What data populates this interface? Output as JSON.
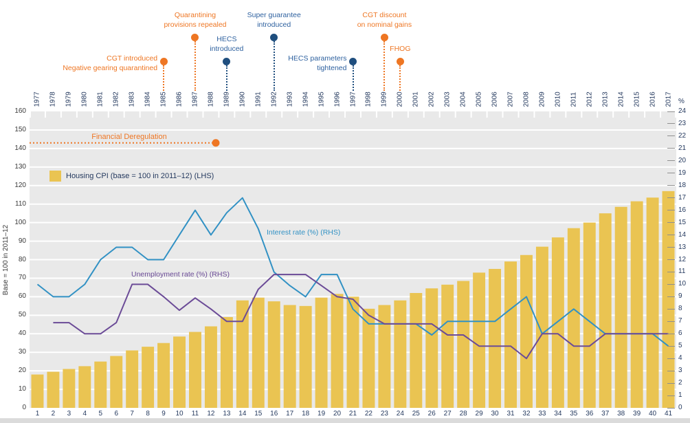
{
  "colors": {
    "bar": "#EAC452",
    "interest_line": "#3191C4",
    "unemployment_line": "#6B4B97",
    "orange": "#EE7623",
    "navy_dot": "#1F4E7E",
    "navy_text": "#2E619F",
    "axis_navy": "#24395E",
    "left_axis_text": "#3A3A3A",
    "plot_bg": "#E9E9E9",
    "gridline": "#FFFFFF"
  },
  "axes": {
    "left_title": "Base = 100 in 2011–12",
    "right_title": "%",
    "left_ticks": [
      0,
      10,
      20,
      30,
      40,
      50,
      60,
      70,
      80,
      90,
      100,
      110,
      120,
      130,
      140,
      150,
      160
    ],
    "right_ticks": [
      0,
      1,
      2,
      3,
      4,
      5,
      6,
      7,
      8,
      9,
      10,
      11,
      12,
      13,
      14,
      15,
      16,
      17,
      18,
      19,
      20,
      21,
      22,
      23,
      24
    ],
    "bottom_ticks": [
      "1",
      "2",
      "3",
      "4",
      "5",
      "6",
      "7",
      "8",
      "9",
      "10",
      "11",
      "12",
      "13",
      "14",
      "15",
      "16",
      "17",
      "18",
      "19",
      "20",
      "21",
      "22",
      "23",
      "24",
      "25",
      "26",
      "27",
      "28",
      "29",
      "30",
      "31",
      "32",
      "33",
      "34",
      "35",
      "36",
      "37",
      "38",
      "39",
      "40",
      "41"
    ]
  },
  "legend": {
    "label": "Housing CPI (base = 100 in 2011–12) (LHS)"
  },
  "line_labels": {
    "interest": "Interest rate (%) (RHS)",
    "unemployment": "Unemployment rate (%) (RHS)"
  },
  "annotations": {
    "financial_deregulation": {
      "label": "Financial Deregulation",
      "lhs_value": 143,
      "style": "dotted orange line from left edge ending with dot between 1988 and 1989"
    }
  },
  "timeline": {
    "events": [
      {
        "year": "1985",
        "level": "low",
        "color": "orange",
        "align": "left-of-dot",
        "lines": [
          "CGT introduced",
          "Negative gearing quarantined"
        ]
      },
      {
        "year": "1987",
        "level": "high",
        "color": "orange",
        "align": "above",
        "lines": [
          "Quarantining",
          "provisions repealed"
        ]
      },
      {
        "year": "1989",
        "level": "low",
        "color": "blue",
        "align": "above",
        "lines": [
          "HECS",
          "introduced"
        ]
      },
      {
        "year": "1992",
        "level": "high",
        "color": "blue",
        "align": "above",
        "lines": [
          "Super guarantee",
          "introduced"
        ]
      },
      {
        "year": "1997",
        "level": "low",
        "color": "blue",
        "align": "left-of-dot",
        "lines": [
          "HECS parameters",
          "tightened"
        ]
      },
      {
        "year": "1999",
        "level": "high",
        "color": "orange",
        "align": "above",
        "lines": [
          "CGT discount",
          "on nominal gains"
        ]
      },
      {
        "year": "2000",
        "level": "low",
        "color": "orange",
        "align": "above",
        "lines": [
          "FHOG"
        ]
      }
    ]
  },
  "chart_data": {
    "type": "combo",
    "categories": [
      "1977",
      "1978",
      "1979",
      "1980",
      "1981",
      "1982",
      "1983",
      "1984",
      "1985",
      "1986",
      "1987",
      "1988",
      "1989",
      "1990",
      "1991",
      "1992",
      "1993",
      "1994",
      "1995",
      "1996",
      "1997",
      "1998",
      "1999",
      "2000",
      "2001",
      "2002",
      "2003",
      "2004",
      "2005",
      "2006",
      "2007",
      "2008",
      "2009",
      "2010",
      "2011",
      "2012",
      "2013",
      "2014",
      "2015",
      "2016",
      "2017"
    ],
    "lhs_range": [
      0,
      160
    ],
    "rhs_range": [
      0,
      24
    ],
    "gridlines": "horizontal white lines every 10 LHS units on grey background",
    "legend_position": "upper-left inside plot",
    "series": [
      {
        "name": "Housing CPI (base = 100 in 2011–12)",
        "type": "bar",
        "axis": "LHS",
        "color": "#EAC452",
        "values": [
          18,
          19.5,
          21,
          22.5,
          25,
          28,
          31,
          33,
          35,
          38.5,
          41,
          44,
          49,
          58,
          59.5,
          57.5,
          55.5,
          55,
          59.5,
          61.5,
          60,
          53.5,
          55.5,
          58,
          62,
          64.5,
          66.5,
          68.5,
          73,
          75,
          79,
          82.5,
          87,
          92,
          97,
          100,
          105,
          108.5,
          111.5,
          113.5,
          117
        ]
      },
      {
        "name": "Interest rate (%)",
        "type": "line",
        "axis": "RHS",
        "color": "#3191C4",
        "values": [
          10,
          9,
          9,
          10,
          12,
          13,
          13,
          12,
          12,
          14,
          16,
          14,
          15.8,
          17,
          14.5,
          11,
          9.9,
          9,
          10.8,
          10.8,
          8,
          6.8,
          6.8,
          6.8,
          6.8,
          5.9,
          7,
          7,
          7,
          7,
          8,
          9,
          6,
          7,
          8,
          7,
          6,
          6,
          6,
          6,
          5
        ]
      },
      {
        "name": "Unemployment rate (%)",
        "type": "line",
        "axis": "RHS",
        "color": "#6B4B97",
        "values": [
          null,
          6.9,
          6.9,
          6,
          6,
          6.9,
          10,
          10,
          9,
          7.9,
          8.9,
          8,
          7,
          7,
          9.6,
          10.8,
          10.8,
          10.8,
          9.9,
          9,
          8.8,
          7.5,
          6.8,
          6.8,
          6.8,
          6.8,
          5.9,
          5.9,
          5,
          5,
          5,
          4,
          6,
          6,
          5,
          5,
          6,
          6,
          6,
          6,
          6
        ]
      }
    ]
  }
}
